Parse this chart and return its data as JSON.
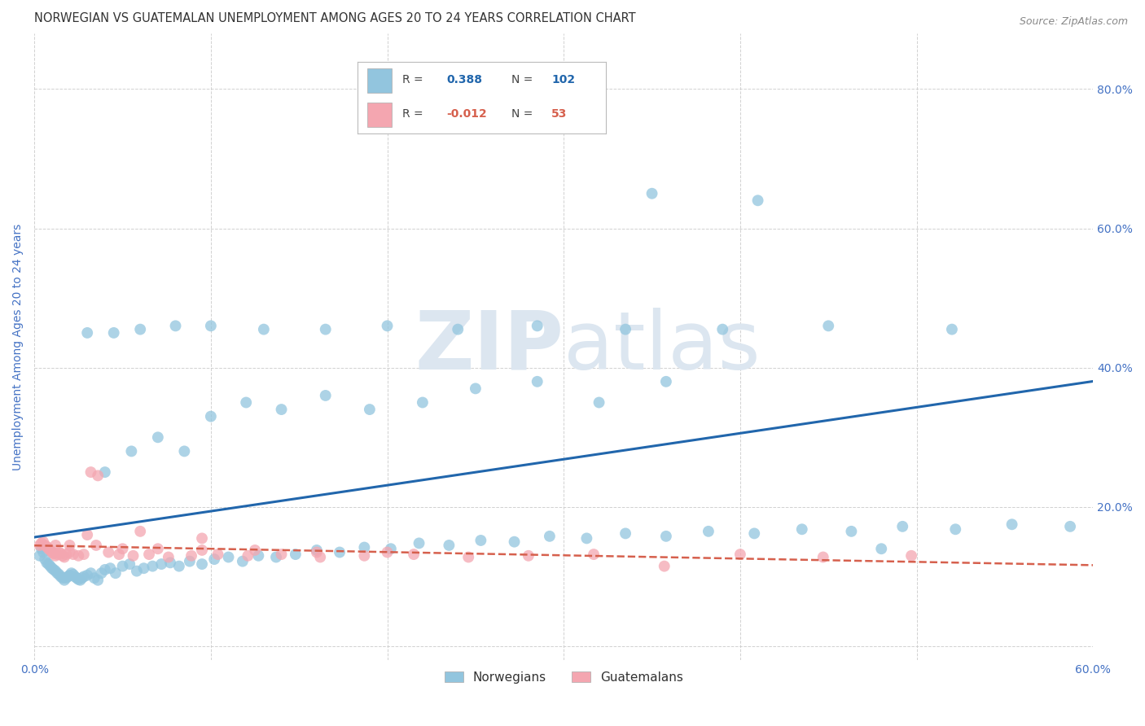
{
  "title": "NORWEGIAN VS GUATEMALAN UNEMPLOYMENT AMONG AGES 20 TO 24 YEARS CORRELATION CHART",
  "source": "Source: ZipAtlas.com",
  "ylabel": "Unemployment Among Ages 20 to 24 years",
  "xlim": [
    0.0,
    0.6
  ],
  "ylim": [
    -0.02,
    0.88
  ],
  "yticks": [
    0.0,
    0.2,
    0.4,
    0.6,
    0.8
  ],
  "ytick_labels": [
    "",
    "20.0%",
    "40.0%",
    "60.0%",
    "80.0%"
  ],
  "xticks": [
    0.0,
    0.1,
    0.2,
    0.3,
    0.4,
    0.5,
    0.6
  ],
  "xtick_labels": [
    "0.0%",
    "",
    "",
    "",
    "",
    "",
    "60.0%"
  ],
  "norwegian_color": "#92c5de",
  "guatemalan_color": "#f4a6b0",
  "trendline_norwegian_color": "#2166ac",
  "trendline_guatemalan_color": "#d6604d",
  "background_color": "#ffffff",
  "grid_color": "#cccccc",
  "watermark_color": "#dce6f0",
  "title_color": "#333333",
  "axis_label_color": "#4472c4",
  "tick_label_color": "#4472c4",
  "norwegian_R": "0.388",
  "norwegian_N": "102",
  "guatemalan_R": "-0.012",
  "guatemalan_N": "53",
  "nor_scatter_x": [
    0.003,
    0.004,
    0.005,
    0.006,
    0.007,
    0.008,
    0.009,
    0.01,
    0.011,
    0.012,
    0.013,
    0.014,
    0.015,
    0.016,
    0.017,
    0.018,
    0.019,
    0.02,
    0.021,
    0.022,
    0.023,
    0.024,
    0.025,
    0.026,
    0.027,
    0.028,
    0.03,
    0.032,
    0.034,
    0.036,
    0.038,
    0.04,
    0.043,
    0.046,
    0.05,
    0.054,
    0.058,
    0.062,
    0.067,
    0.072,
    0.077,
    0.082,
    0.088,
    0.095,
    0.102,
    0.11,
    0.118,
    0.127,
    0.137,
    0.148,
    0.16,
    0.173,
    0.187,
    0.202,
    0.218,
    0.235,
    0.253,
    0.272,
    0.292,
    0.313,
    0.335,
    0.358,
    0.382,
    0.408,
    0.435,
    0.463,
    0.492,
    0.522,
    0.554,
    0.587,
    0.04,
    0.055,
    0.07,
    0.085,
    0.1,
    0.12,
    0.14,
    0.165,
    0.19,
    0.22,
    0.25,
    0.285,
    0.32,
    0.358,
    0.03,
    0.045,
    0.06,
    0.08,
    0.1,
    0.13,
    0.165,
    0.2,
    0.24,
    0.285,
    0.335,
    0.39,
    0.45,
    0.52,
    0.295,
    0.35,
    0.41,
    0.48
  ],
  "nor_scatter_y": [
    0.13,
    0.14,
    0.135,
    0.125,
    0.12,
    0.118,
    0.115,
    0.112,
    0.11,
    0.108,
    0.105,
    0.103,
    0.1,
    0.098,
    0.095,
    0.098,
    0.1,
    0.102,
    0.105,
    0.103,
    0.1,
    0.098,
    0.096,
    0.095,
    0.098,
    0.1,
    0.102,
    0.105,
    0.098,
    0.095,
    0.105,
    0.11,
    0.112,
    0.105,
    0.115,
    0.118,
    0.108,
    0.112,
    0.115,
    0.118,
    0.12,
    0.115,
    0.122,
    0.118,
    0.125,
    0.128,
    0.122,
    0.13,
    0.128,
    0.132,
    0.138,
    0.135,
    0.142,
    0.14,
    0.148,
    0.145,
    0.152,
    0.15,
    0.158,
    0.155,
    0.162,
    0.158,
    0.165,
    0.162,
    0.168,
    0.165,
    0.172,
    0.168,
    0.175,
    0.172,
    0.25,
    0.28,
    0.3,
    0.28,
    0.33,
    0.35,
    0.34,
    0.36,
    0.34,
    0.35,
    0.37,
    0.38,
    0.35,
    0.38,
    0.45,
    0.45,
    0.455,
    0.46,
    0.46,
    0.455,
    0.455,
    0.46,
    0.455,
    0.46,
    0.455,
    0.455,
    0.46,
    0.455,
    0.755,
    0.65,
    0.64,
    0.14
  ],
  "gua_scatter_x": [
    0.003,
    0.004,
    0.005,
    0.006,
    0.007,
    0.008,
    0.009,
    0.01,
    0.011,
    0.012,
    0.013,
    0.014,
    0.015,
    0.016,
    0.017,
    0.018,
    0.02,
    0.022,
    0.025,
    0.028,
    0.032,
    0.036,
    0.042,
    0.048,
    0.056,
    0.065,
    0.076,
    0.089,
    0.104,
    0.121,
    0.14,
    0.162,
    0.187,
    0.215,
    0.246,
    0.28,
    0.317,
    0.357,
    0.4,
    0.447,
    0.497,
    0.03,
    0.06,
    0.095,
    0.012,
    0.02,
    0.035,
    0.05,
    0.07,
    0.095,
    0.125,
    0.16,
    0.2
  ],
  "gua_scatter_y": [
    0.145,
    0.148,
    0.15,
    0.145,
    0.143,
    0.14,
    0.138,
    0.135,
    0.133,
    0.13,
    0.132,
    0.135,
    0.133,
    0.13,
    0.128,
    0.132,
    0.135,
    0.132,
    0.13,
    0.132,
    0.25,
    0.245,
    0.135,
    0.132,
    0.13,
    0.132,
    0.128,
    0.13,
    0.132,
    0.13,
    0.132,
    0.128,
    0.13,
    0.132,
    0.128,
    0.13,
    0.132,
    0.115,
    0.132,
    0.128,
    0.13,
    0.16,
    0.165,
    0.155,
    0.145,
    0.145,
    0.145,
    0.14,
    0.14,
    0.138,
    0.138,
    0.135,
    0.135
  ]
}
